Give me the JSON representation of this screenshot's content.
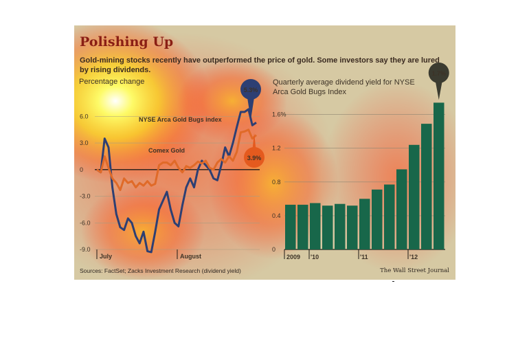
{
  "title": "Polishing Up",
  "subtitle": "Gold-mining stocks recently have outperformed the price of gold. Some investors say they are lured by rising dividends.",
  "source": "Sources: FactSet; Zacks Investment Research (dividend yield)",
  "credit": "The Wall Street Journal",
  "colors": {
    "gold_bugs": "#2d3f73",
    "comex": "#e06a28",
    "bars": "#18674a",
    "background": "#d6c9a3"
  },
  "chart_data": [
    {
      "type": "line",
      "ylabel": "Percentage change",
      "ylim": [
        -9.0,
        7.5
      ],
      "yticks": [
        "6.0",
        "3.0",
        "0",
        "-3.0",
        "-6.0",
        "-9.0"
      ],
      "x_tick_labels": [
        "July",
        "August"
      ],
      "series": [
        {
          "name": "NYSE Arca Gold Bugs index",
          "end_label": "5.3%",
          "values": [
            0,
            -0.3,
            3.5,
            2.5,
            -2.0,
            -5.0,
            -6.5,
            -6.8,
            -5.5,
            -6.0,
            -7.5,
            -8.3,
            -7.0,
            -9.2,
            -9.3,
            -7.0,
            -4.5,
            -3.5,
            -2.5,
            -4.5,
            -6.0,
            -6.4,
            -4.0,
            -2.0,
            -1.0,
            -2.0,
            0.0,
            1.0,
            0.5,
            0.0,
            -1.0,
            -1.2,
            0.5,
            2.5,
            1.5,
            3.0,
            4.8,
            6.5,
            6.5,
            6.8,
            5.0,
            5.3
          ]
        },
        {
          "name": "Comex Gold",
          "end_label": "3.9%",
          "values": [
            0,
            -0.3,
            1.5,
            0.2,
            -1.0,
            -1.5,
            -2.3,
            -1.0,
            -1.5,
            -1.3,
            -2.0,
            -1.5,
            -1.8,
            -1.3,
            -1.8,
            -1.6,
            0.5,
            0.8,
            0.8,
            0.5,
            1.0,
            0.2,
            -0.3,
            0.4,
            0.2,
            0.5,
            0.9,
            0.7,
            1.0,
            0.2,
            0.0,
            0.8,
            1.2,
            0.8,
            1.5,
            1.0,
            2.0,
            4.2,
            4.3,
            4.5,
            3.5,
            3.9
          ]
        }
      ]
    },
    {
      "type": "bar",
      "title": "Quarterly average dividend yield for NYSE Arca Gold Bugs Index",
      "ylim": [
        0,
        1.8
      ],
      "yticks": [
        "1.6%",
        "1.2",
        "0.8",
        "0.4",
        "0"
      ],
      "x_tick_labels": [
        "2009",
        "'10",
        "'11",
        "'12"
      ],
      "values": [
        0.53,
        0.53,
        0.55,
        0.52,
        0.54,
        0.52,
        0.6,
        0.71,
        0.77,
        0.95,
        1.24,
        1.49,
        1.74
      ],
      "callout": "1.7%"
    }
  ]
}
